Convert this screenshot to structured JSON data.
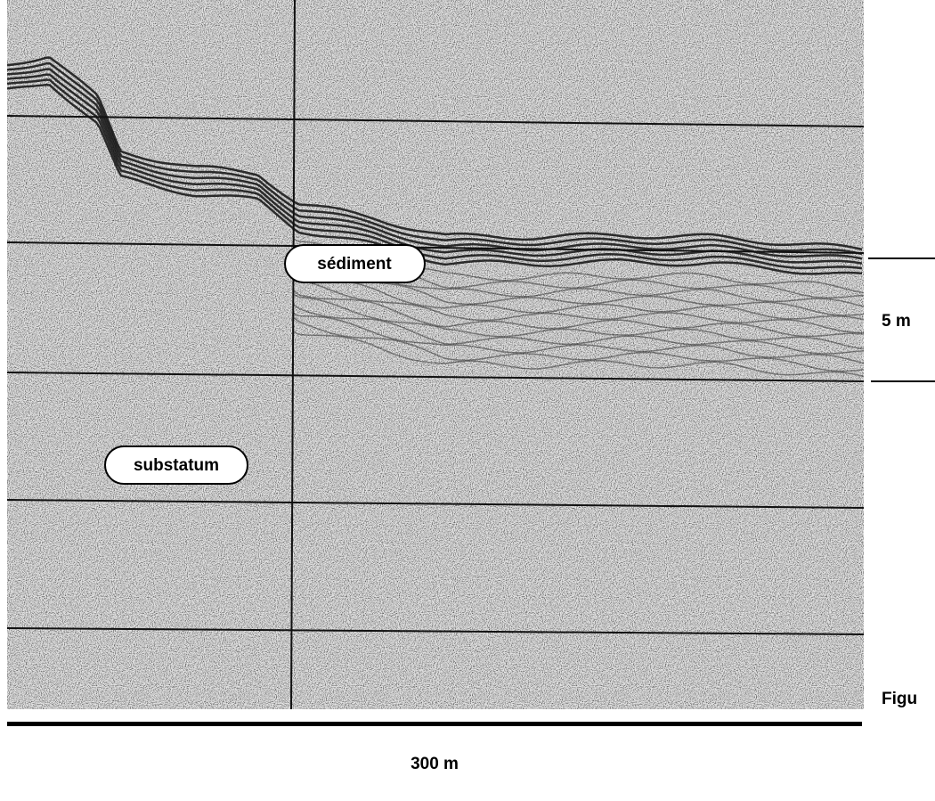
{
  "labels": {
    "sediment": "sédiment",
    "substratum": "substatum"
  },
  "scale": {
    "vertical": "5 m",
    "horizontal": "300 m"
  },
  "caption": "Figu"
}
